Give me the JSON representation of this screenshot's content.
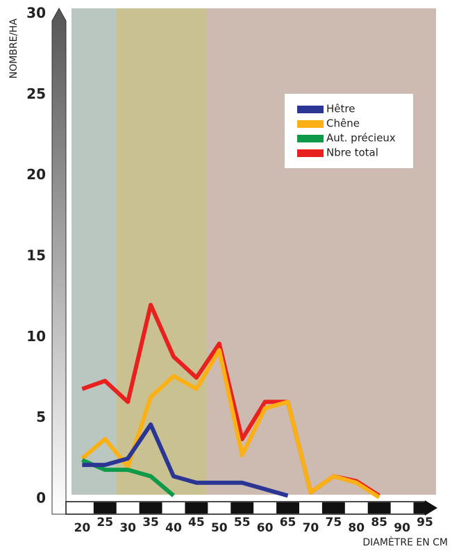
{
  "chart_data": {
    "type": "line",
    "x": [
      20,
      25,
      30,
      35,
      40,
      45,
      50,
      55,
      60,
      65,
      70,
      75,
      80,
      85
    ],
    "series": [
      {
        "name": "Nbre total",
        "color": "#e8201e",
        "values": [
          6.8,
          7.3,
          6.0,
          12.0,
          8.8,
          7.5,
          9.6,
          3.7,
          6.0,
          6.0,
          0.4,
          1.4,
          1.1,
          0.2
        ]
      },
      {
        "name": "Chêne",
        "color": "#fbb116",
        "values": [
          2.5,
          3.7,
          2.0,
          6.3,
          7.6,
          6.8,
          9.2,
          2.7,
          5.6,
          6.0,
          0.4,
          1.4,
          1.0,
          0.1
        ]
      },
      {
        "name": "Aut. précieux",
        "color": "#0e9a48",
        "values": [
          2.4,
          1.8,
          1.8,
          1.4,
          0.2,
          null,
          null,
          null,
          null,
          null,
          null,
          null,
          null,
          null
        ]
      },
      {
        "name": "Hêtre",
        "color": "#2b3694",
        "values": [
          2.1,
          2.1,
          2.5,
          4.6,
          1.4,
          1.0,
          1.0,
          1.0,
          0.6,
          0.2,
          null,
          null,
          null,
          null
        ]
      }
    ],
    "legend_order": [
      "Hêtre",
      "Chêne",
      "Aut. précieux",
      "Nbre total"
    ],
    "y_label": "NOMBRE/HA",
    "x_label": "DIAMÈTRE EN CM",
    "ylim": [
      0,
      30
    ],
    "yticks": [
      0,
      5,
      10,
      15,
      20,
      25,
      30
    ],
    "xlim": [
      16,
      95
    ],
    "xticks": [
      20,
      25,
      30,
      35,
      40,
      45,
      50,
      55,
      60,
      65,
      70,
      75,
      80,
      85,
      90,
      95
    ]
  }
}
